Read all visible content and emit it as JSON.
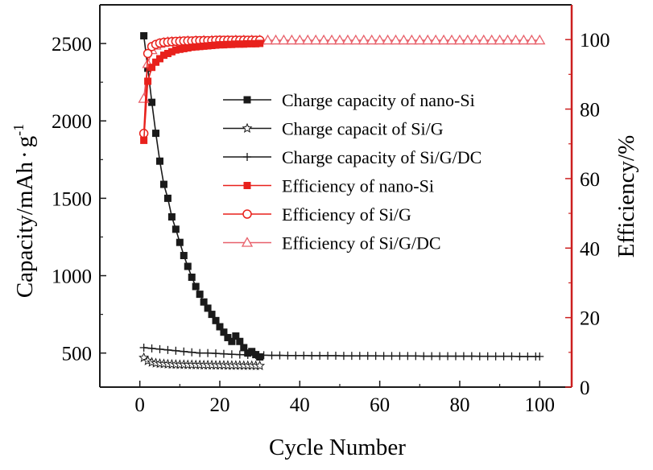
{
  "chart_data": {
    "type": "line",
    "xlabel": "Cycle Number",
    "ylabel_left_main": "Capacity/mAh",
    "ylabel_left_sep": "·",
    "ylabel_left_unit": "g",
    "ylabel_left_sup": "-1",
    "ylabel_right": "Efficiency/%",
    "xlim": [
      -10,
      108
    ],
    "ylim_left": [
      280,
      2750
    ],
    "ylim_right": [
      0,
      110
    ],
    "xticks": [
      0,
      20,
      40,
      60,
      80,
      100
    ],
    "yticks_left": [
      500,
      1000,
      1500,
      2000,
      2500
    ],
    "yticks_right": [
      0,
      20,
      40,
      60,
      80,
      100
    ],
    "legend_position": "center-right",
    "colors": {
      "black": "#1a1a1a",
      "red": "#e8211c",
      "light_red": "#e8606a",
      "axis_right": "#cc1f1f"
    },
    "series": [
      {
        "name": "Charge capacity of nano-Si",
        "axis": "left",
        "marker": "square",
        "color": "#1a1a1a",
        "x": [
          1,
          2,
          3,
          4,
          5,
          6,
          7,
          8,
          9,
          10,
          11,
          12,
          13,
          14,
          15,
          16,
          17,
          18,
          19,
          20,
          21,
          22,
          23,
          24,
          25,
          26,
          27,
          28,
          29,
          30
        ],
        "y": [
          2550,
          2340,
          2120,
          1920,
          1740,
          1590,
          1500,
          1380,
          1300,
          1215,
          1130,
          1060,
          990,
          930,
          880,
          830,
          790,
          750,
          710,
          670,
          635,
          600,
          575,
          610,
          575,
          535,
          500,
          510,
          490,
          475
        ]
      },
      {
        "name": "Charge capacit of Si/G",
        "axis": "left",
        "marker": "star",
        "color": "#1a1a1a",
        "x": [
          1,
          2,
          3,
          4,
          5,
          6,
          7,
          8,
          9,
          10,
          11,
          12,
          13,
          14,
          15,
          16,
          17,
          18,
          19,
          20,
          21,
          22,
          23,
          24,
          25,
          26,
          27,
          28,
          29,
          30
        ],
        "y": [
          470,
          450,
          440,
          435,
          432,
          430,
          428,
          427,
          426,
          425,
          425,
          424,
          424,
          423,
          423,
          422,
          422,
          422,
          421,
          421,
          421,
          420,
          420,
          420,
          420,
          419,
          419,
          419,
          418,
          418
        ]
      },
      {
        "name": "Charge capacity of Si/G/DC",
        "axis": "left",
        "marker": "plus",
        "color": "#1a1a1a",
        "x": [
          1,
          3,
          5,
          7,
          9,
          11,
          13,
          15,
          17,
          19,
          21,
          23,
          25,
          27,
          29,
          31,
          33,
          35,
          37,
          39,
          41,
          43,
          45,
          47,
          49,
          51,
          53,
          55,
          57,
          59,
          61,
          63,
          65,
          67,
          69,
          71,
          73,
          75,
          77,
          79,
          81,
          83,
          85,
          87,
          89,
          91,
          93,
          95,
          97,
          99,
          100
        ],
        "y": [
          535,
          530,
          525,
          520,
          515,
          510,
          505,
          500,
          500,
          498,
          495,
          492,
          490,
          488,
          487,
          486,
          485,
          485,
          484,
          484,
          484,
          483,
          483,
          483,
          483,
          482,
          482,
          482,
          482,
          482,
          481,
          481,
          481,
          481,
          481,
          480,
          480,
          480,
          480,
          480,
          480,
          480,
          479,
          479,
          479,
          479,
          479,
          478,
          478,
          478,
          478
        ]
      },
      {
        "name": "Efficiency of nano-Si",
        "axis": "right",
        "marker": "square",
        "color": "#e8211c",
        "x": [
          1,
          2,
          3,
          4,
          5,
          6,
          7,
          8,
          9,
          10,
          11,
          12,
          13,
          14,
          15,
          16,
          17,
          18,
          19,
          20,
          21,
          22,
          23,
          24,
          25,
          26,
          27,
          28,
          29,
          30
        ],
        "y": [
          71,
          88,
          92,
          93.5,
          94.5,
          95.5,
          96,
          96.5,
          97,
          97.2,
          97.4,
          97.6,
          97.8,
          97.9,
          98,
          98.1,
          98.2,
          98.3,
          98.4,
          98.5,
          98.5,
          98.6,
          98.6,
          98.7,
          98.7,
          98.7,
          98.8,
          98.8,
          98.8,
          98.9
        ]
      },
      {
        "name": "Efficiency of Si/G",
        "axis": "right",
        "marker": "circle",
        "color": "#e8211c",
        "x": [
          1,
          2,
          3,
          4,
          5,
          6,
          7,
          8,
          9,
          10,
          11,
          12,
          13,
          14,
          15,
          16,
          17,
          18,
          19,
          20,
          21,
          22,
          23,
          24,
          25,
          26,
          27,
          28,
          29,
          30
        ],
        "y": [
          73,
          96,
          98,
          98.6,
          99,
          99.2,
          99.3,
          99.4,
          99.5,
          99.5,
          99.6,
          99.6,
          99.6,
          99.7,
          99.7,
          99.7,
          99.7,
          99.7,
          99.8,
          99.8,
          99.8,
          99.8,
          99.8,
          99.8,
          99.8,
          99.8,
          99.8,
          99.8,
          99.8,
          99.8
        ]
      },
      {
        "name": "Efficiency of Si/G/DC",
        "axis": "right",
        "marker": "triangle",
        "color": "#e8606a",
        "x": [
          1,
          2,
          3,
          4,
          5,
          6,
          7,
          8,
          10,
          12,
          14,
          16,
          18,
          20,
          22,
          24,
          26,
          28,
          30,
          32,
          34,
          36,
          38,
          40,
          42,
          44,
          46,
          48,
          50,
          52,
          54,
          56,
          58,
          60,
          62,
          64,
          66,
          68,
          70,
          72,
          74,
          76,
          78,
          80,
          82,
          84,
          86,
          88,
          90,
          92,
          94,
          96,
          98,
          100
        ],
        "y": [
          83,
          93,
          97,
          98.3,
          98.8,
          99.1,
          99.3,
          99.4,
          99.5,
          99.6,
          99.6,
          99.7,
          99.7,
          99.7,
          99.7,
          99.8,
          99.8,
          99.8,
          99.8,
          99.8,
          99.8,
          99.8,
          99.8,
          99.8,
          99.8,
          99.8,
          99.8,
          99.8,
          99.8,
          99.8,
          99.8,
          99.8,
          99.8,
          99.8,
          99.8,
          99.8,
          99.8,
          99.8,
          99.8,
          99.8,
          99.8,
          99.8,
          99.8,
          99.8,
          99.8,
          99.8,
          99.8,
          99.8,
          99.8,
          99.8,
          99.8,
          99.8,
          99.8,
          99.8
        ]
      }
    ]
  }
}
